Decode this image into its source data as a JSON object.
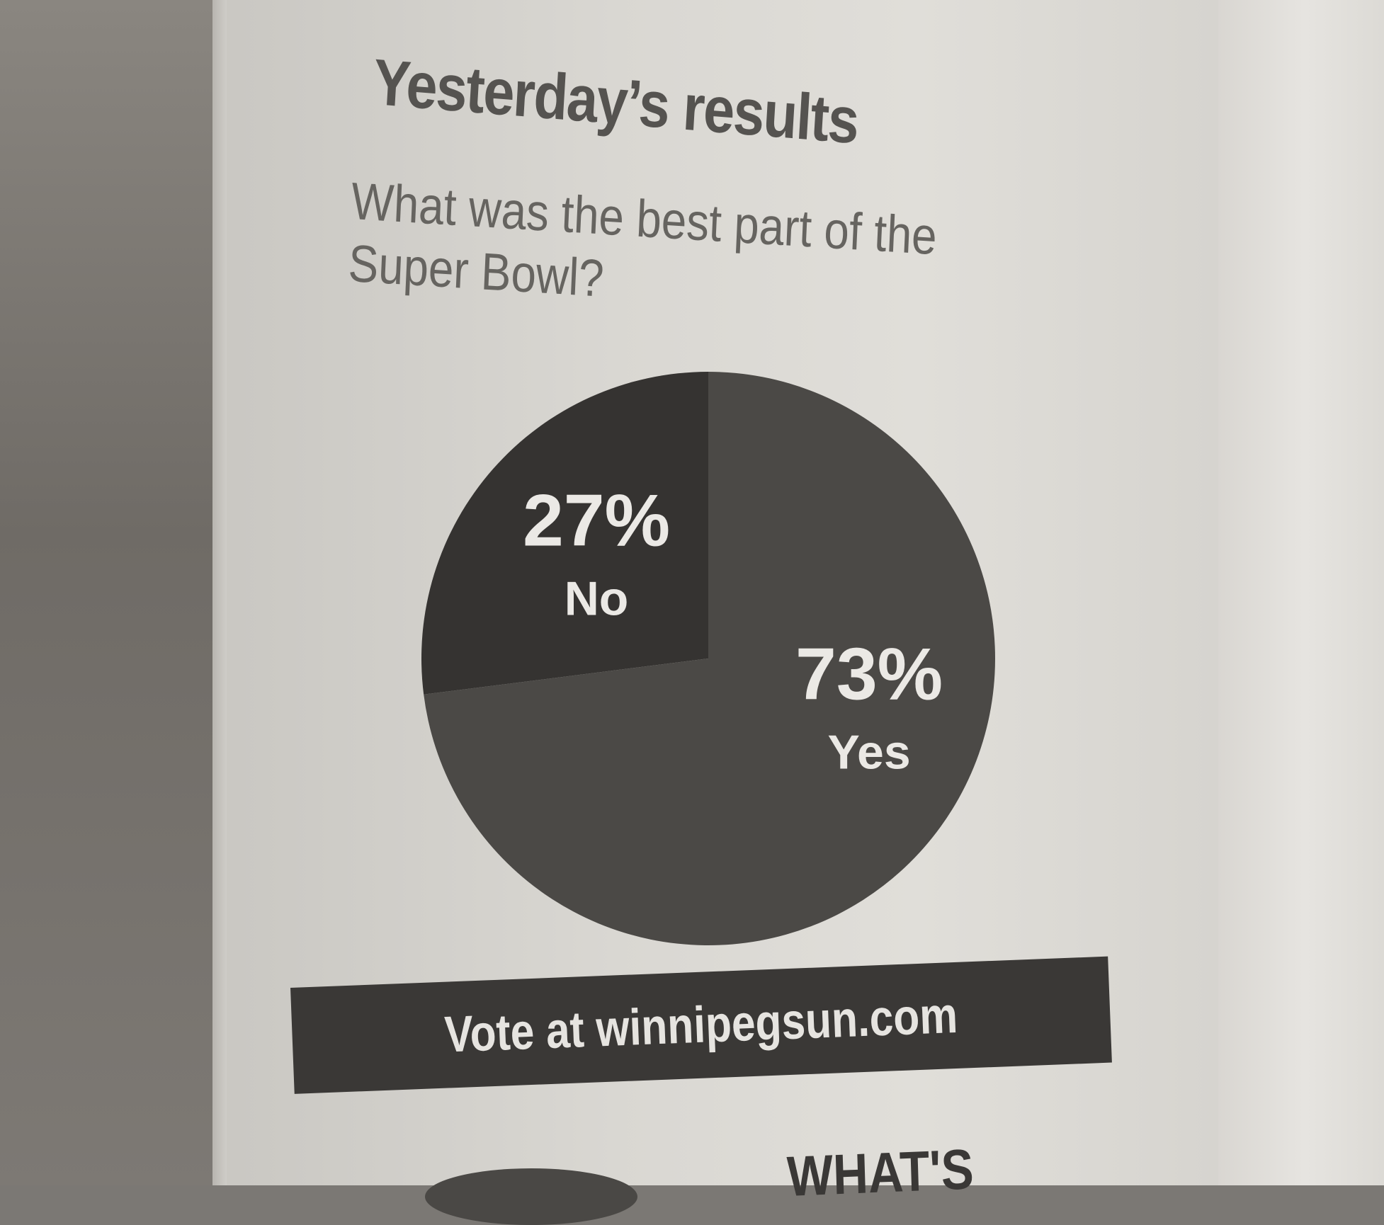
{
  "header": {
    "title": "Yesterday’s results",
    "question": "What was the best part of the Super Bowl?"
  },
  "chart_data": {
    "type": "pie",
    "slices": [
      {
        "label": "No",
        "value": 27,
        "value_label": "27%",
        "color": "#353331"
      },
      {
        "label": "Yes",
        "value": 73,
        "value_label": "73%",
        "color": "#4b4946"
      }
    ],
    "title": "",
    "legend": "none"
  },
  "footer": {
    "vote_text": "Vote at winnipegsun.com"
  },
  "next_section": {
    "heading_fragment": "WHAT'S"
  },
  "colors": {
    "label_text": "#ebe9e5",
    "footer_bg": "#3a3836"
  }
}
